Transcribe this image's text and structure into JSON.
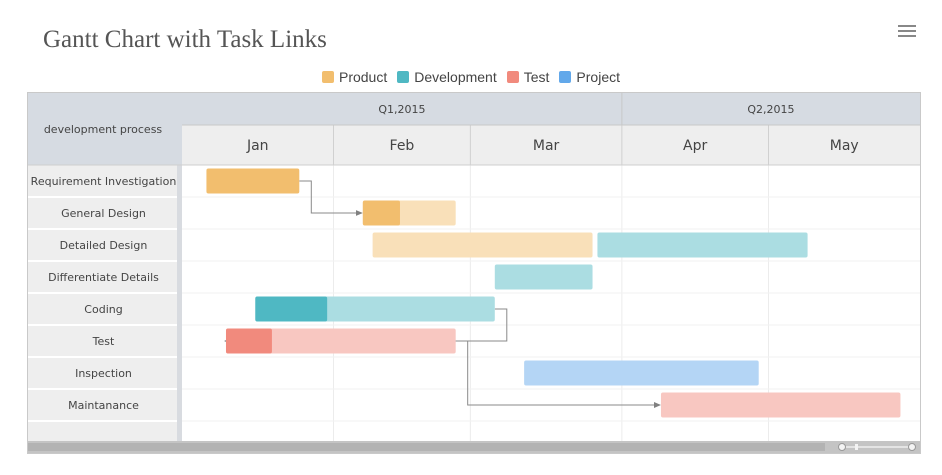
{
  "page": {
    "title": "Gantt Chart with Task Links",
    "menu_icon": "hamburger-menu-icon"
  },
  "chart_data": {
    "type": "gantt",
    "title": "Gantt Chart with Task Links",
    "category_header": "development process",
    "quarters": [
      "Q1,2015",
      "Q2,2015"
    ],
    "months": [
      "Jan",
      "Feb",
      "Mar",
      "Apr",
      "May"
    ],
    "x_range": [
      "2015-01-01",
      "2015-06-01"
    ],
    "legend": [
      {
        "name": "Product",
        "color": "#f2be6e"
      },
      {
        "name": "Development",
        "color": "#4fb8c3"
      },
      {
        "name": "Test",
        "color": "#f18a7d"
      },
      {
        "name": "Project",
        "color": "#62a8ea"
      }
    ],
    "categories": [
      "Requirement Investigation",
      "General Design",
      "Detailed Design",
      "Differentiate Details",
      "Coding",
      "Test",
      "Inspection",
      "Maintanance"
    ],
    "tasks": [
      {
        "row": 0,
        "series": "Product",
        "start": "2015-01-06",
        "end": "2015-01-25",
        "progress": 1.0
      },
      {
        "row": 1,
        "series": "Product",
        "start": "2015-02-07",
        "end": "2015-02-26",
        "progress": 0.4
      },
      {
        "row": 2,
        "series": "Product",
        "start": "2015-02-09",
        "end": "2015-03-26",
        "progress": 0
      },
      {
        "row": 2,
        "series": "Development",
        "start": "2015-03-27",
        "end": "2015-05-09",
        "progress": 0
      },
      {
        "row": 3,
        "series": "Development",
        "start": "2015-03-06",
        "end": "2015-03-26",
        "progress": 0
      },
      {
        "row": 4,
        "series": "Development",
        "start": "2015-01-16",
        "end": "2015-03-06",
        "progress": 0.3
      },
      {
        "row": 5,
        "series": "Test",
        "start": "2015-01-10",
        "end": "2015-02-26",
        "progress": 0.2
      },
      {
        "row": 6,
        "series": "Project",
        "start": "2015-03-12",
        "end": "2015-04-29",
        "progress": 0
      },
      {
        "row": 7,
        "series": "Test",
        "start": "2015-04-09",
        "end": "2015-05-28",
        "progress": 0
      }
    ],
    "links": [
      {
        "from": 0,
        "to": 1
      },
      {
        "from": 5,
        "to": 6
      },
      {
        "from": 6,
        "to": 8
      }
    ]
  }
}
